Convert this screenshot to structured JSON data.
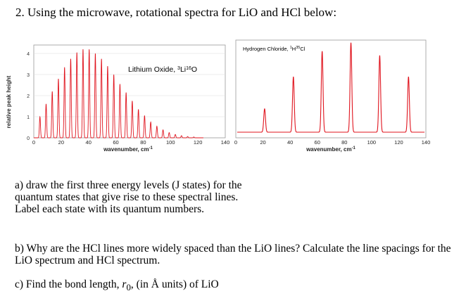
{
  "heading": "2. Using the microwave, rotational spectra for LiO and HCl below:",
  "shared_ylabel": "relative peak height",
  "chart_data": [
    {
      "type": "line",
      "title": "Lithium Oxide, ",
      "title_sup1": "3",
      "title_mid": "Li",
      "title_sup2": "16",
      "title_end": "O",
      "xlabel": "wavenumber, cm",
      "xlabel_sup": "-1",
      "xlim": [
        0,
        140
      ],
      "ylim": [
        0,
        4
      ],
      "xticks": [
        "0",
        "20",
        "40",
        "60",
        "80",
        "100",
        "120",
        "140"
      ],
      "yticks": [
        "0",
        "1",
        "2",
        "3",
        "4"
      ],
      "line_color": "#e0141e",
      "peaks": [
        {
          "x": 4.5,
          "y": 1.0
        },
        {
          "x": 9.0,
          "y": 1.6
        },
        {
          "x": 13.5,
          "y": 2.2
        },
        {
          "x": 18.0,
          "y": 2.8
        },
        {
          "x": 22.5,
          "y": 3.35
        },
        {
          "x": 27.0,
          "y": 3.75
        },
        {
          "x": 31.5,
          "y": 4.05
        },
        {
          "x": 36.0,
          "y": 4.2
        },
        {
          "x": 40.5,
          "y": 4.2
        },
        {
          "x": 45.0,
          "y": 4.0
        },
        {
          "x": 49.5,
          "y": 3.75
        },
        {
          "x": 54.0,
          "y": 3.4
        },
        {
          "x": 58.5,
          "y": 3.0
        },
        {
          "x": 63.0,
          "y": 2.55
        },
        {
          "x": 67.5,
          "y": 2.15
        },
        {
          "x": 72.0,
          "y": 1.75
        },
        {
          "x": 76.5,
          "y": 1.35
        },
        {
          "x": 81.0,
          "y": 1.05
        },
        {
          "x": 85.5,
          "y": 0.75
        },
        {
          "x": 90.0,
          "y": 0.55
        },
        {
          "x": 94.5,
          "y": 0.38
        },
        {
          "x": 99.0,
          "y": 0.25
        },
        {
          "x": 103.5,
          "y": 0.16
        },
        {
          "x": 108.0,
          "y": 0.1
        },
        {
          "x": 112.5,
          "y": 0.06
        },
        {
          "x": 117.0,
          "y": 0.04
        }
      ]
    },
    {
      "type": "line",
      "title": "Hydrogen Chloride, ",
      "title_sup1": "1",
      "title_mid": "H",
      "title_sup2": "35",
      "title_end": "Cl",
      "xlabel": "wavenumber, cm",
      "xlabel_sup": "-1",
      "xlim": [
        0,
        140
      ],
      "ylim": [
        0,
        4
      ],
      "xticks": [
        "0",
        "20",
        "40",
        "60",
        "80",
        "100",
        "120",
        "140"
      ],
      "line_color": "#e0141e",
      "peaks": [
        {
          "x": 21.2,
          "y": 1.1
        },
        {
          "x": 42.4,
          "y": 2.6
        },
        {
          "x": 63.6,
          "y": 3.8
        },
        {
          "x": 84.8,
          "y": 4.2
        },
        {
          "x": 106.0,
          "y": 3.6
        },
        {
          "x": 127.2,
          "y": 2.6
        }
      ]
    }
  ],
  "questions": {
    "a": "a) draw the first three energy levels (J states) for the quantum states that give rise to these spectral lines. Label each state with its quantum numbers.",
    "b": "b) Why are the HCl lines more widely spaced than the LiO lines? Calculate the line spacings for the LiO spectrum and HCl spectrum.",
    "c_pre": "c) Find the bond length, ",
    "c_r": "r",
    "c_sub": "0",
    "c_post": ", (in Å units) of LiO"
  }
}
